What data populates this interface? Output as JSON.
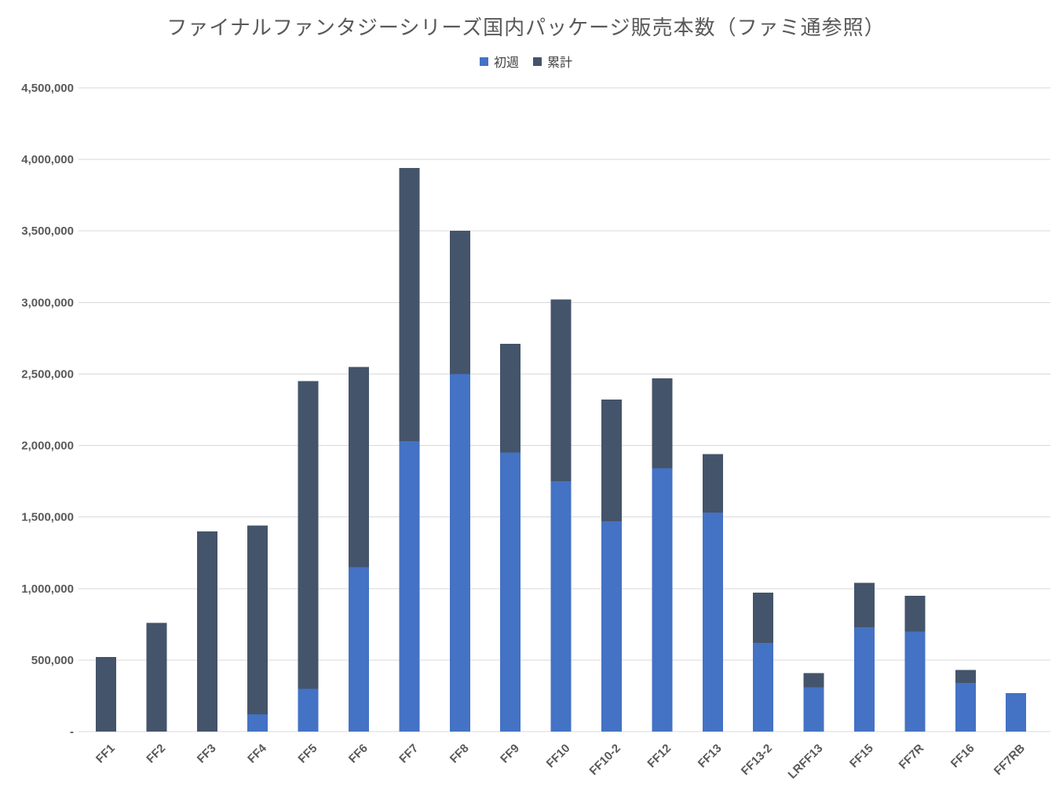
{
  "chart_data": {
    "type": "bar",
    "stacked": true,
    "title": "ファイナルファンタジーシリーズ国内パッケージ販売本数（ファミ通参照）",
    "xlabel": "",
    "ylabel": "",
    "categories": [
      "FF1",
      "FF2",
      "FF3",
      "FF4",
      "FF5",
      "FF6",
      "FF7",
      "FF8",
      "FF9",
      "FF10",
      "FF10-2",
      "FF12",
      "FF13",
      "FF13-2",
      "LRFF13",
      "FF15",
      "FF7R",
      "FF16",
      "FF7RB"
    ],
    "series": [
      {
        "name": "初週",
        "color": "#4472C4",
        "values": [
          null,
          null,
          null,
          120000,
          300000,
          1150000,
          2030000,
          2500000,
          1950000,
          1750000,
          1470000,
          1840000,
          1530000,
          620000,
          310000,
          730000,
          700000,
          340000,
          270000
        ]
      },
      {
        "name": "累計",
        "color": "#44546A",
        "note": "cumulative total; drawn as the dark remainder stacked above 初週",
        "values": [
          520000,
          760000,
          1400000,
          1440000,
          2450000,
          2550000,
          3940000,
          3500000,
          2710000,
          3020000,
          2320000,
          2470000,
          1940000,
          970000,
          410000,
          1040000,
          950000,
          430000,
          270000
        ]
      }
    ],
    "ylim": [
      0,
      4500000
    ],
    "ytick_step": 500000,
    "ytick_labels_bottom_up": [
      "-",
      "500,000",
      "1,000,000",
      "1,500,000",
      "2,000,000",
      "2,500,000",
      "3,000,000",
      "3,500,000",
      "4,000,000",
      "4,500,000"
    ],
    "grid": "horizontal",
    "gridline_color": "#D9D9D9",
    "axis_label_color": "#595959",
    "title_color": "#595959",
    "legend_position": "top",
    "legend_text_color": "#404040"
  }
}
